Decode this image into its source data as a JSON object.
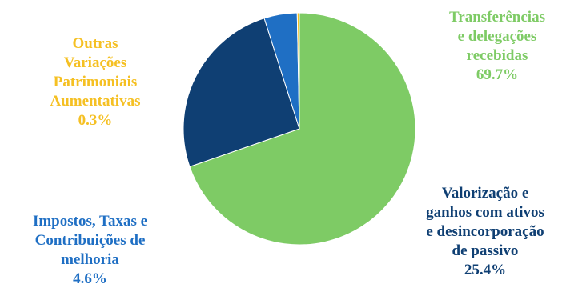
{
  "chart_data": {
    "type": "pie",
    "slices": [
      {
        "label": [
          "Transferências",
          "e delegações",
          "recebidas"
        ],
        "value": 69.7,
        "value_label": "69.7%",
        "color": "#7ecb65"
      },
      {
        "label": [
          "Valorização e",
          "ganhos com ativos",
          "e desincorporação",
          "de passivo"
        ],
        "value": 25.4,
        "value_label": "25.4%",
        "color": "#0f3f73"
      },
      {
        "label": [
          "Impostos, Taxas e",
          "Contribuições de",
          "melhoria"
        ],
        "value": 4.6,
        "value_label": "4.6%",
        "color": "#1f6fc4"
      },
      {
        "label": [
          "Outras",
          "Variações",
          "Patrimoniais",
          "Aumentativas"
        ],
        "value": 0.3,
        "value_label": "0.3%",
        "color": "#f5c023"
      }
    ]
  }
}
